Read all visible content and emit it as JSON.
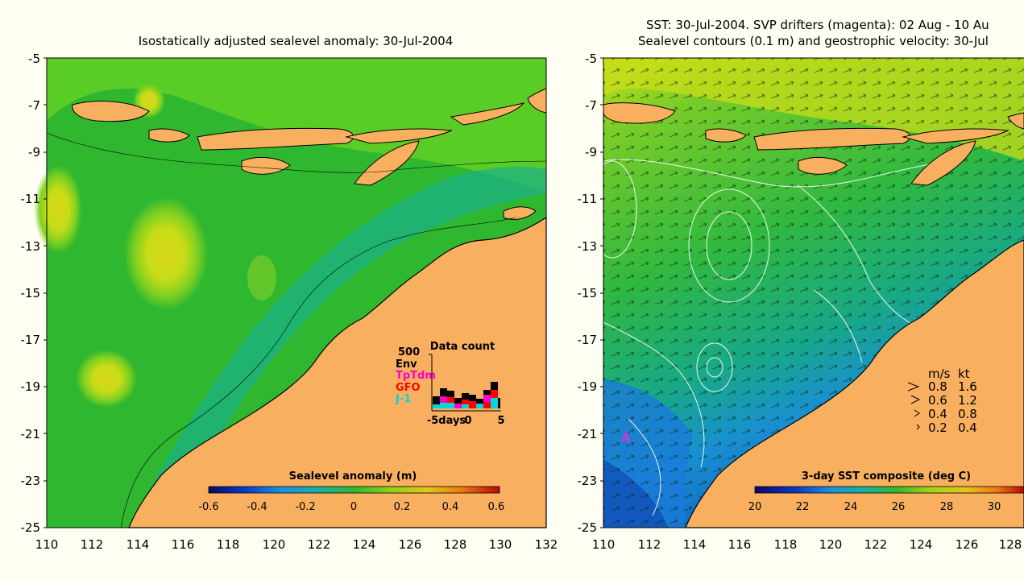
{
  "left_panel": {
    "title": "Isostatically adjusted sealevel anomaly: 30-Jul-2004",
    "y_ticks": [
      "-5",
      "-7",
      "-9",
      "-11",
      "-13",
      "-15",
      "-17",
      "-19",
      "-21",
      "-23",
      "-25"
    ],
    "x_ticks": [
      "110",
      "112",
      "114",
      "116",
      "118",
      "120",
      "122",
      "124",
      "126",
      "128",
      "130",
      "132"
    ],
    "colorbar": {
      "label": "Sealevel anomaly (m)",
      "ticks": [
        "-0.6",
        "-0.4",
        "-0.2",
        "0",
        "0.2",
        "0.4",
        "0.6"
      ]
    },
    "data_count": {
      "title": "Data count",
      "scale_label": "500",
      "legend": [
        {
          "label": "Env",
          "color": "#000000"
        },
        {
          "label": "TpTdm",
          "color": "#ff00cc"
        },
        {
          "label": "GFO",
          "color": "#ff0000"
        },
        {
          "label": "J-1",
          "color": "#00d8d8"
        }
      ],
      "x_ticks": [
        "-5days",
        "0",
        "5"
      ]
    }
  },
  "right_panel": {
    "title_line1": "SST: 30-Jul-2004. SVP drifters (magenta): 02 Aug - 10 Au",
    "title_line2": "Sealevel contours (0.1 m) and geostrophic velocity: 30-Jul",
    "y_ticks": [
      "-5",
      "-7",
      "-9",
      "-11",
      "-13",
      "-15",
      "-17",
      "-19",
      "-21",
      "-23",
      "-25"
    ],
    "x_ticks": [
      "110",
      "112",
      "114",
      "116",
      "118",
      "120",
      "122",
      "124",
      "126",
      "128"
    ],
    "colorbar": {
      "label": "3-day SST composite (deg C)",
      "ticks": [
        "20",
        "22",
        "24",
        "26",
        "28",
        "30"
      ]
    },
    "velocity_legend": {
      "header_ms": "m/s",
      "header_kt": "kt",
      "rows": [
        {
          "ms": "0.8",
          "kt": "1.6"
        },
        {
          "ms": "0.6",
          "kt": "1.2"
        },
        {
          "ms": "0.4",
          "kt": "0.8"
        },
        {
          "ms": "0.2",
          "kt": "0.4"
        }
      ]
    }
  },
  "colors": {
    "land": "#f8b060",
    "ocean_green": "#2fb82f",
    "ocean_light": "#62cf24",
    "ocean_teal": "#18b08a",
    "anomaly_yellow": "#c8dc18",
    "sst_cool": "#1a7ad8"
  }
}
